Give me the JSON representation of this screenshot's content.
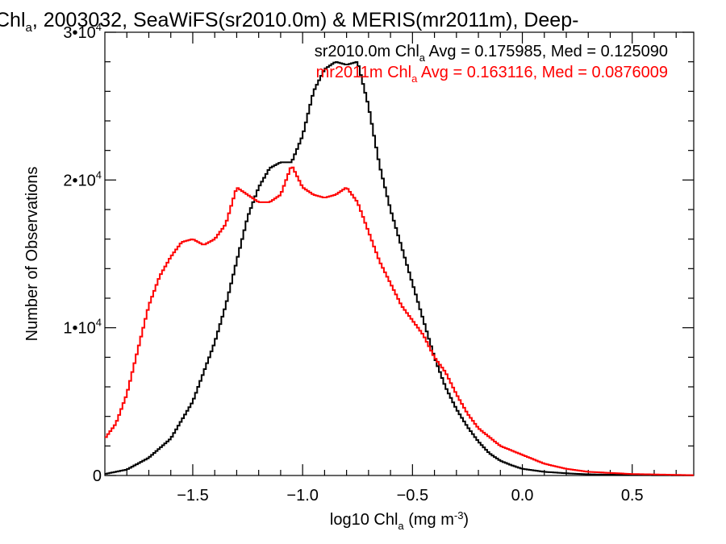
{
  "chart_data": {
    "type": "line",
    "title": {
      "prefix": "Chl",
      "sub": "a",
      "suffix": ", 2003032, SeaWiFS(sr2010.0m) & MERIS(mr2011m), Deep-"
    },
    "xlabel": {
      "prefix": "log10 Chl",
      "sub": "a",
      "suffix": " (mg m",
      "sup": "-3",
      "close": ")"
    },
    "ylabel": "Number of Observations",
    "xlim": [
      -1.9,
      0.78
    ],
    "ylim": [
      0,
      30000
    ],
    "x_ticks": [
      {
        "value": -1.5,
        "label": "−1.5"
      },
      {
        "value": -1.0,
        "label": "−1.0"
      },
      {
        "value": -0.5,
        "label": "−0.5"
      },
      {
        "value": 0.0,
        "label": "0.0"
      },
      {
        "value": 0.5,
        "label": "0.5"
      }
    ],
    "y_ticks": [
      {
        "value": 0,
        "base": "0",
        "exp": ""
      },
      {
        "value": 10000,
        "base": "1•10",
        "exp": "4"
      },
      {
        "value": 20000,
        "base": "2•10",
        "exp": "4"
      },
      {
        "value": 30000,
        "base": "3•10",
        "exp": "4"
      }
    ],
    "grid": false,
    "legend_position": "top-right",
    "series": [
      {
        "name": "sr2010.0m",
        "color": "#000000",
        "stats_label": {
          "prefix": "sr2010.0m Chl",
          "sub": "a",
          "suffix": " Avg = 0.175985, Med = 0.125090"
        },
        "points": [
          [
            -1.9,
            100
          ],
          [
            -1.8,
            400
          ],
          [
            -1.7,
            1200
          ],
          [
            -1.6,
            2500
          ],
          [
            -1.5,
            5000
          ],
          [
            -1.45,
            7000
          ],
          [
            -1.4,
            9000
          ],
          [
            -1.35,
            11500
          ],
          [
            -1.3,
            14500
          ],
          [
            -1.25,
            17500
          ],
          [
            -1.2,
            19500
          ],
          [
            -1.15,
            20800
          ],
          [
            -1.1,
            21200
          ],
          [
            -1.05,
            21200
          ],
          [
            -1.0,
            23000
          ],
          [
            -0.95,
            26000
          ],
          [
            -0.9,
            27500
          ],
          [
            -0.85,
            28000
          ],
          [
            -0.8,
            27800
          ],
          [
            -0.75,
            28000
          ],
          [
            -0.7,
            25000
          ],
          [
            -0.65,
            21000
          ],
          [
            -0.6,
            18000
          ],
          [
            -0.55,
            15500
          ],
          [
            -0.5,
            13000
          ],
          [
            -0.45,
            10500
          ],
          [
            -0.4,
            8000
          ],
          [
            -0.35,
            6000
          ],
          [
            -0.3,
            4500
          ],
          [
            -0.25,
            3300
          ],
          [
            -0.2,
            2300
          ],
          [
            -0.15,
            1500
          ],
          [
            -0.1,
            1000
          ],
          [
            -0.05,
            700
          ],
          [
            0.0,
            450
          ],
          [
            0.1,
            250
          ],
          [
            0.2,
            150
          ],
          [
            0.3,
            80
          ],
          [
            0.5,
            30
          ],
          [
            0.78,
            10
          ]
        ]
      },
      {
        "name": "mr2011m",
        "color": "#ff0000",
        "stats_label": {
          "prefix": "mr2011m Chl",
          "sub": "a",
          "suffix": " Avg = 0.163116, Med = 0.0876009"
        },
        "points": [
          [
            -1.9,
            2500
          ],
          [
            -1.85,
            3500
          ],
          [
            -1.8,
            5500
          ],
          [
            -1.75,
            8500
          ],
          [
            -1.7,
            11500
          ],
          [
            -1.65,
            13500
          ],
          [
            -1.6,
            14800
          ],
          [
            -1.55,
            15800
          ],
          [
            -1.5,
            16000
          ],
          [
            -1.45,
            15600
          ],
          [
            -1.4,
            16000
          ],
          [
            -1.35,
            17000
          ],
          [
            -1.3,
            19500
          ],
          [
            -1.25,
            19000
          ],
          [
            -1.2,
            18500
          ],
          [
            -1.15,
            18500
          ],
          [
            -1.1,
            19000
          ],
          [
            -1.05,
            21000
          ],
          [
            -1.0,
            19500
          ],
          [
            -0.95,
            19000
          ],
          [
            -0.9,
            18800
          ],
          [
            -0.85,
            19000
          ],
          [
            -0.8,
            19500
          ],
          [
            -0.75,
            18500
          ],
          [
            -0.7,
            16500
          ],
          [
            -0.65,
            14500
          ],
          [
            -0.6,
            13000
          ],
          [
            -0.55,
            11500
          ],
          [
            -0.5,
            10500
          ],
          [
            -0.45,
            9500
          ],
          [
            -0.4,
            8000
          ],
          [
            -0.35,
            7000
          ],
          [
            -0.3,
            5500
          ],
          [
            -0.25,
            4200
          ],
          [
            -0.2,
            3200
          ],
          [
            -0.1,
            2000
          ],
          [
            0.0,
            1400
          ],
          [
            0.1,
            800
          ],
          [
            0.2,
            450
          ],
          [
            0.3,
            250
          ],
          [
            0.5,
            100
          ],
          [
            0.78,
            20
          ]
        ]
      }
    ]
  }
}
